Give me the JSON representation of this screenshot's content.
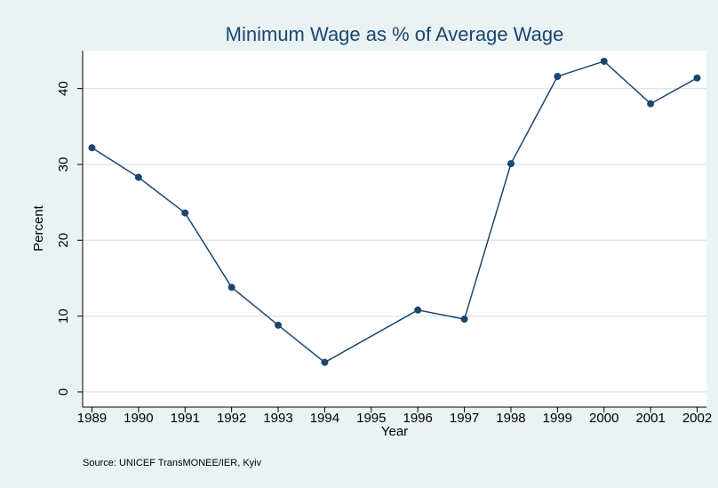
{
  "chart_data": {
    "type": "line",
    "title": "Minimum Wage as % of Average Wage",
    "x_label": "Year",
    "y_label": "Percent",
    "note": "Source: UNICEF TransMONEE/IER, Kyiv",
    "x": [
      1989,
      1990,
      1991,
      1992,
      1993,
      1994,
      1996,
      1997,
      1998,
      1999,
      2000,
      2001,
      2002
    ],
    "series": [
      {
        "name": "Minimum wage",
        "color": "#1a476f",
        "values": [
          32.2,
          28.3,
          23.6,
          13.8,
          8.8,
          3.9,
          10.8,
          9.6,
          30.1,
          41.6,
          43.6,
          38.0,
          41.4
        ]
      }
    ],
    "xlim": [
      1988.8,
      2002.2
    ],
    "xticks": [
      1989,
      1990,
      1991,
      1992,
      1993,
      1994,
      1995,
      1996,
      1997,
      1998,
      1999,
      2000,
      2001,
      2002
    ],
    "ylim": [
      -2,
      45
    ],
    "yticks": [
      0,
      10,
      20,
      30,
      40
    ],
    "grid": true
  }
}
